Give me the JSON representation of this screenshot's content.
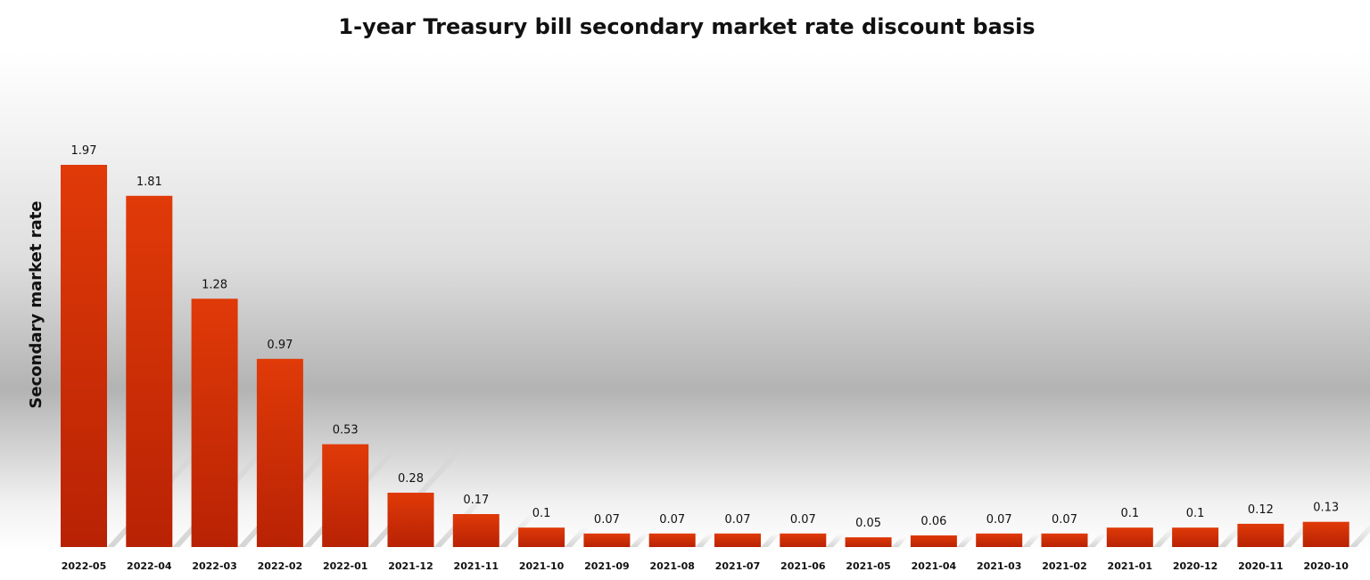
{
  "chart_data": {
    "type": "bar",
    "title": "1-year Treasury bill secondary market rate discount basis",
    "xlabel": "",
    "ylabel": "Secondary market rate",
    "categories": [
      "2022-05",
      "2022-04",
      "2022-03",
      "2022-02",
      "2022-01",
      "2021-12",
      "2021-11",
      "2021-10",
      "2021-09",
      "2021-08",
      "2021-07",
      "2021-06",
      "2021-05",
      "2021-04",
      "2021-03",
      "2021-02",
      "2021-01",
      "2020-12",
      "2020-11",
      "2020-10"
    ],
    "values": [
      1.97,
      1.81,
      1.28,
      0.97,
      0.53,
      0.28,
      0.17,
      0.1,
      0.07,
      0.07,
      0.07,
      0.07,
      0.05,
      0.06,
      0.07,
      0.07,
      0.1,
      0.1,
      0.12,
      0.13
    ],
    "ylim": [
      0,
      1.97
    ],
    "grid": false,
    "legend": "none",
    "bar_color": "#d63006"
  }
}
